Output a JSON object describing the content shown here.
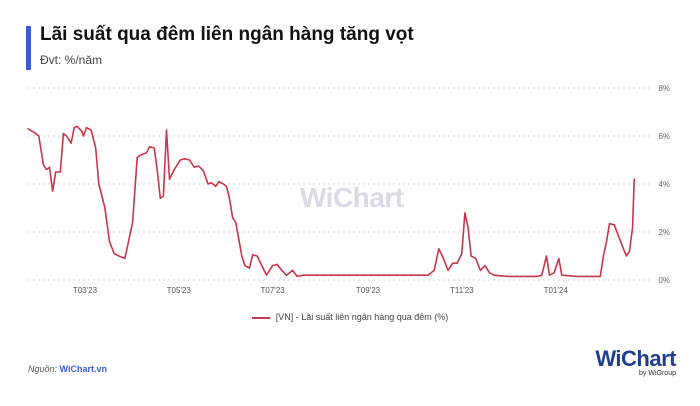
{
  "header": {
    "title": "Lãi suất qua đêm liên ngân hàng tăng vọt",
    "subtitle": "Đvt: %/năm"
  },
  "footer": {
    "source_prefix": "Nguồn: ",
    "source_name": "WiChart.vn"
  },
  "logo": {
    "text": "WiChart",
    "sub": "by WiGroup",
    "watermark": "WiChart"
  },
  "colors": {
    "series": "#c8364b",
    "accent": "#3b5bdb",
    "grid": "#d5d5d5"
  },
  "chart_data": {
    "type": "line",
    "title": "Lãi suất qua đêm liên ngân hàng tăng vọt",
    "subtitle": "Đvt: %/năm",
    "ylim": [
      0,
      8
    ],
    "yticks": [
      0,
      2,
      4,
      6,
      8
    ],
    "y_tick_labels": [
      "0%",
      "2%",
      "4%",
      "6%",
      "8%"
    ],
    "y_axis_side": "right",
    "grid": "horizontal dotted",
    "legend_position": "bottom-center",
    "x_tick_labels": [
      "T03'23",
      "T05'23",
      "T07'23",
      "T09'23",
      "T11'23",
      "T01'24"
    ],
    "x_ticks": [
      "2023-03-01",
      "2023-05-01",
      "2023-07-01",
      "2023-09-01",
      "2023-11-01",
      "2024-01-01"
    ],
    "x_range": [
      "2023-01-23",
      "2024-03-01"
    ],
    "series": [
      {
        "name": "[VN] - Lãi suất liên ngân hàng qua đêm (%)",
        "color": "#c8364b",
        "points": [
          [
            "2023-01-23",
            6.3
          ],
          [
            "2023-01-27",
            6.15
          ],
          [
            "2023-01-30",
            6.0
          ],
          [
            "2023-02-02",
            4.8
          ],
          [
            "2023-02-04",
            4.6
          ],
          [
            "2023-02-06",
            4.7
          ],
          [
            "2023-02-08",
            3.7
          ],
          [
            "2023-02-10",
            4.5
          ],
          [
            "2023-02-13",
            4.5
          ],
          [
            "2023-02-15",
            6.1
          ],
          [
            "2023-02-17",
            6.0
          ],
          [
            "2023-02-20",
            5.7
          ],
          [
            "2023-02-22",
            6.35
          ],
          [
            "2023-02-24",
            6.4
          ],
          [
            "2023-02-27",
            6.2
          ],
          [
            "2023-02-28",
            6.0
          ],
          [
            "2023-03-02",
            6.35
          ],
          [
            "2023-03-05",
            6.25
          ],
          [
            "2023-03-08",
            5.5
          ],
          [
            "2023-03-10",
            4.0
          ],
          [
            "2023-03-14",
            3.0
          ],
          [
            "2023-03-17",
            1.6
          ],
          [
            "2023-03-20",
            1.1
          ],
          [
            "2023-03-23",
            1.0
          ],
          [
            "2023-03-27",
            0.9
          ],
          [
            "2023-03-30",
            1.8
          ],
          [
            "2023-04-01",
            2.4
          ],
          [
            "2023-04-04",
            5.1
          ],
          [
            "2023-04-06",
            5.2
          ],
          [
            "2023-04-10",
            5.3
          ],
          [
            "2023-04-12",
            5.55
          ],
          [
            "2023-04-15",
            5.5
          ],
          [
            "2023-04-17",
            4.6
          ],
          [
            "2023-04-19",
            3.4
          ],
          [
            "2023-04-21",
            3.5
          ],
          [
            "2023-04-23",
            6.25
          ],
          [
            "2023-04-25",
            4.2
          ],
          [
            "2023-04-28",
            4.6
          ],
          [
            "2023-05-02",
            5.0
          ],
          [
            "2023-05-05",
            5.05
          ],
          [
            "2023-05-08",
            5.0
          ],
          [
            "2023-05-11",
            4.7
          ],
          [
            "2023-05-14",
            4.75
          ],
          [
            "2023-05-17",
            4.55
          ],
          [
            "2023-05-20",
            4.0
          ],
          [
            "2023-05-22",
            4.05
          ],
          [
            "2023-05-25",
            3.9
          ],
          [
            "2023-05-27",
            4.1
          ],
          [
            "2023-05-30",
            4.0
          ],
          [
            "2023-06-01",
            3.9
          ],
          [
            "2023-06-03",
            3.4
          ],
          [
            "2023-06-05",
            2.6
          ],
          [
            "2023-06-07",
            2.4
          ],
          [
            "2023-06-09",
            1.7
          ],
          [
            "2023-06-11",
            1.0
          ],
          [
            "2023-06-13",
            0.6
          ],
          [
            "2023-06-16",
            0.5
          ],
          [
            "2023-06-18",
            1.05
          ],
          [
            "2023-06-21",
            1.0
          ],
          [
            "2023-06-24",
            0.6
          ],
          [
            "2023-06-27",
            0.2
          ],
          [
            "2023-07-01",
            0.6
          ],
          [
            "2023-07-04",
            0.65
          ],
          [
            "2023-07-07",
            0.4
          ],
          [
            "2023-07-10",
            0.2
          ],
          [
            "2023-07-14",
            0.4
          ],
          [
            "2023-07-17",
            0.15
          ],
          [
            "2023-07-21",
            0.2
          ],
          [
            "2023-08-01",
            0.2
          ],
          [
            "2023-08-15",
            0.2
          ],
          [
            "2023-09-01",
            0.2
          ],
          [
            "2023-09-15",
            0.2
          ],
          [
            "2023-10-01",
            0.2
          ],
          [
            "2023-10-10",
            0.2
          ],
          [
            "2023-10-14",
            0.4
          ],
          [
            "2023-10-17",
            1.3
          ],
          [
            "2023-10-20",
            0.9
          ],
          [
            "2023-10-23",
            0.4
          ],
          [
            "2023-10-26",
            0.7
          ],
          [
            "2023-10-29",
            0.7
          ],
          [
            "2023-11-01",
            1.1
          ],
          [
            "2023-11-03",
            2.8
          ],
          [
            "2023-11-05",
            2.2
          ],
          [
            "2023-11-07",
            1.0
          ],
          [
            "2023-11-10",
            0.9
          ],
          [
            "2023-11-13",
            0.4
          ],
          [
            "2023-11-16",
            0.6
          ],
          [
            "2023-11-19",
            0.3
          ],
          [
            "2023-11-22",
            0.2
          ],
          [
            "2023-12-01",
            0.15
          ],
          [
            "2023-12-10",
            0.15
          ],
          [
            "2023-12-20",
            0.15
          ],
          [
            "2023-12-23",
            0.2
          ],
          [
            "2023-12-26",
            1.0
          ],
          [
            "2023-12-28",
            0.2
          ],
          [
            "2023-12-31",
            0.3
          ],
          [
            "2024-01-03",
            0.9
          ],
          [
            "2024-01-05",
            0.2
          ],
          [
            "2024-01-15",
            0.15
          ],
          [
            "2024-01-25",
            0.15
          ],
          [
            "2024-01-30",
            0.15
          ],
          [
            "2024-02-01",
            1.0
          ],
          [
            "2024-02-03",
            1.6
          ],
          [
            "2024-02-05",
            2.35
          ],
          [
            "2024-02-08",
            2.3
          ],
          [
            "2024-02-11",
            1.8
          ],
          [
            "2024-02-14",
            1.3
          ],
          [
            "2024-02-16",
            1.0
          ],
          [
            "2024-02-18",
            1.2
          ],
          [
            "2024-02-20",
            2.2
          ],
          [
            "2024-02-21",
            4.2
          ]
        ]
      }
    ]
  }
}
